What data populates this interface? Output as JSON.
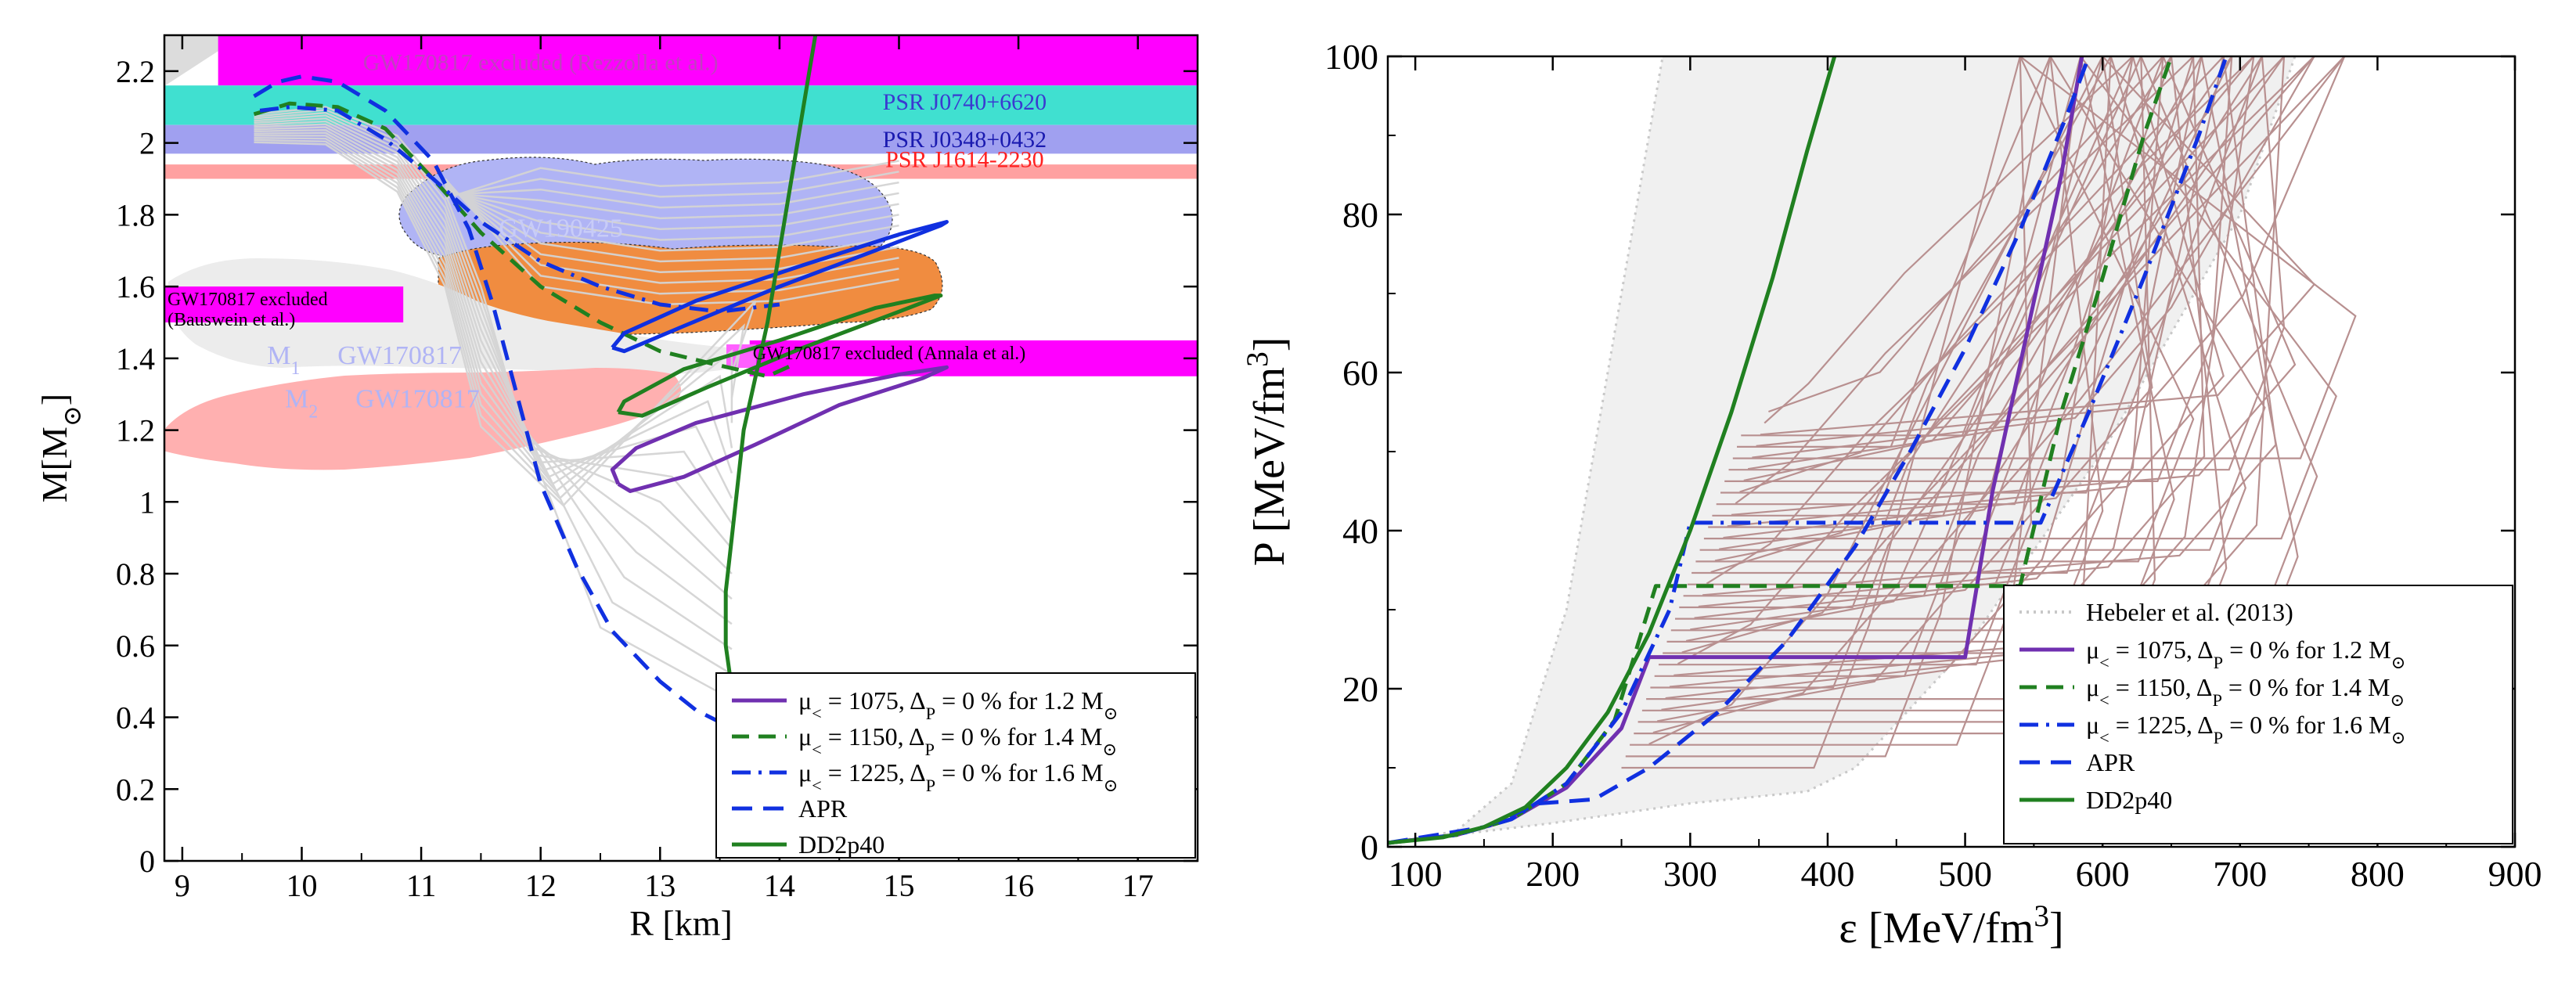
{
  "chart_data": [
    {
      "type": "line",
      "id": "mass-radius",
      "xlabel": "R [km]",
      "ylabel_main": "M[M",
      "ylabel_sub": "⊙",
      "ylabel_end": "]",
      "xlim": [
        8.85,
        17.5
      ],
      "ylim": [
        0,
        2.3
      ],
      "xticks": [
        9,
        10,
        11,
        12,
        13,
        14,
        15,
        16,
        17
      ],
      "yticks": [
        0,
        0.2,
        0.4,
        0.6,
        0.8,
        1,
        1.2,
        1.4,
        1.6,
        1.8,
        2,
        2.2
      ],
      "ytick_labels": [
        "0",
        "0.2",
        "0.4",
        "0.6",
        "0.8",
        "1",
        "1.2",
        "1.4",
        "1.6",
        "1.8",
        "2",
        "2.2"
      ],
      "bands": [
        {
          "name": "GW170817 excluded (Rezzolla et al.)",
          "color": "#ff00ff",
          "y": [
            2.16,
            2.3
          ],
          "x": [
            9.3,
            17.5
          ],
          "label_x": 12.0,
          "label_y": 2.225,
          "label_color": "#c040c0"
        },
        {
          "name": "PSR J0740+6620",
          "color": "#40e0d0",
          "y": [
            2.05,
            2.16
          ],
          "x": [
            8.85,
            17.5
          ],
          "label_x": 15.55,
          "label_y": 2.115,
          "label_color": "#3a3ad0"
        },
        {
          "name": "PSR J0348+0432",
          "color": "#a0a0f0",
          "y": [
            1.97,
            2.05
          ],
          "x": [
            8.85,
            17.5
          ],
          "label_x": 15.55,
          "label_y": 2.01,
          "label_color": "#1a1ab0"
        },
        {
          "name": "PSR J1614-2230",
          "color": "#ffa0a0",
          "y": [
            1.9,
            1.94
          ],
          "x": [
            8.85,
            17.5
          ],
          "label_x": 15.55,
          "label_y": 1.955,
          "label_color": "#ff2020"
        }
      ],
      "excluded_boxes": [
        {
          "label1": "GW170817 excluded",
          "label2": "(Bauswein et al.)",
          "x": [
            8.85,
            10.85
          ],
          "y": [
            1.5,
            1.6
          ],
          "color": "#ff00ff"
        },
        {
          "label1": "GW170817 excluded (Annala et al.)",
          "label2": "",
          "x": [
            13.75,
            17.5
          ],
          "y": [
            1.35,
            1.45
          ],
          "color": "#ff00ff"
        }
      ],
      "regions": [
        {
          "name": "GW190425",
          "color": "#b0b4f5",
          "label_x": 11.65,
          "label_y": 1.765
        },
        {
          "name": "GW190425 (orange)",
          "color": "#f08c40",
          "label_x": 12.1,
          "label_y": 1.65
        },
        {
          "name": "GW170817 M1",
          "color": "#ececec",
          "label_prefix": "M",
          "label_sub": "1",
          "label": "GW170817",
          "label_x": 10.3,
          "label_y": 1.41
        },
        {
          "name": "GW170817 M2",
          "color": "#ffb0b0",
          "label_prefix": "M",
          "label_sub": "2",
          "label": "GW170817",
          "label_x": 10.45,
          "label_y": 1.29
        }
      ],
      "series": [
        {
          "name": "mu1075",
          "legend_pre": "μ",
          "legend_sub": "<",
          "legend_mid": " = 1075, Δ",
          "legend_sub2": "P",
          "legend_post": " = 0 % for 1.2 M",
          "legend_sub3": "⊙",
          "color": "#7030b0",
          "dash": "solid",
          "points": [
            [
              12.65,
              1.05
            ],
            [
              12.6,
              1.09
            ],
            [
              12.8,
              1.15
            ],
            [
              13.3,
              1.22
            ],
            [
              14.2,
              1.3
            ],
            [
              15.0,
              1.355
            ],
            [
              15.4,
              1.375
            ],
            [
              15.2,
              1.345
            ],
            [
              14.5,
              1.27
            ],
            [
              13.8,
              1.16
            ],
            [
              13.2,
              1.07
            ],
            [
              12.75,
              1.03
            ],
            [
              12.65,
              1.05
            ]
          ]
        },
        {
          "name": "mu1150",
          "legend_pre": "μ",
          "legend_sub": "<",
          "legend_mid": " = 1150, Δ",
          "legend_sub2": "P",
          "legend_post": " = 0 % for 1.4 M",
          "legend_sub3": "⊙",
          "color": "#208020",
          "dash": "dashed",
          "points": [
            [
              9.6,
              2.08
            ],
            [
              9.9,
              2.11
            ],
            [
              10.3,
              2.1
            ],
            [
              10.7,
              2.04
            ],
            [
              11.1,
              1.9
            ],
            [
              11.5,
              1.75
            ],
            [
              12.0,
              1.6
            ],
            [
              12.5,
              1.5
            ],
            [
              13.0,
              1.42
            ],
            [
              13.5,
              1.38
            ],
            [
              13.9,
              1.35
            ],
            [
              14.1,
              1.38
            ]
          ]
        },
        {
          "name": "mu1150-loop",
          "color": "#208020",
          "dash": "solid",
          "legend": false,
          "points": [
            [
              12.65,
              1.25
            ],
            [
              12.7,
              1.28
            ],
            [
              13.2,
              1.37
            ],
            [
              14.0,
              1.45
            ],
            [
              14.8,
              1.54
            ],
            [
              15.3,
              1.575
            ],
            [
              15.35,
              1.575
            ],
            [
              15.0,
              1.53
            ],
            [
              14.2,
              1.43
            ],
            [
              13.4,
              1.32
            ],
            [
              12.85,
              1.24
            ],
            [
              12.65,
              1.25
            ]
          ]
        },
        {
          "name": "mu1225",
          "legend_pre": "μ",
          "legend_sub": "<",
          "legend_mid": " = 1225, Δ",
          "legend_sub2": "P",
          "legend_post": " = 0 % for 1.6 M",
          "legend_sub3": "⊙",
          "color": "#1030e0",
          "dash": "dashdot",
          "points": [
            [
              9.65,
              2.09
            ],
            [
              9.9,
              2.1
            ],
            [
              10.3,
              2.09
            ],
            [
              10.7,
              2.01
            ],
            [
              11.1,
              1.9
            ],
            [
              11.5,
              1.78
            ],
            [
              12.0,
              1.67
            ],
            [
              12.5,
              1.6
            ],
            [
              13.0,
              1.55
            ],
            [
              13.5,
              1.53
            ],
            [
              14.0,
              1.55
            ]
          ]
        },
        {
          "name": "mu1225-loop",
          "color": "#1030e0",
          "dash": "solid",
          "legend": false,
          "points": [
            [
              12.6,
              1.43
            ],
            [
              12.7,
              1.47
            ],
            [
              13.3,
              1.56
            ],
            [
              14.2,
              1.66
            ],
            [
              15.0,
              1.745
            ],
            [
              15.4,
              1.78
            ],
            [
              15.35,
              1.77
            ],
            [
              14.8,
              1.7
            ],
            [
              14.0,
              1.6
            ],
            [
              13.2,
              1.49
            ],
            [
              12.7,
              1.42
            ],
            [
              12.6,
              1.43
            ]
          ]
        },
        {
          "name": "APR",
          "legend_pre": "APR",
          "color": "#1030e0",
          "dash": "longdash",
          "points": [
            [
              9.6,
              2.13
            ],
            [
              9.8,
              2.17
            ],
            [
              10.0,
              2.185
            ],
            [
              10.3,
              2.17
            ],
            [
              10.7,
              2.09
            ],
            [
              11.1,
              1.95
            ],
            [
              11.4,
              1.76
            ],
            [
              11.6,
              1.55
            ],
            [
              11.8,
              1.3
            ],
            [
              12.0,
              1.05
            ],
            [
              12.3,
              0.82
            ],
            [
              12.6,
              0.64
            ],
            [
              13.0,
              0.5
            ],
            [
              13.3,
              0.42
            ],
            [
              13.6,
              0.37
            ],
            [
              13.85,
              0.34
            ]
          ]
        },
        {
          "name": "DD2p40",
          "legend_pre": "DD2p40",
          "color": "#208020",
          "dash": "solid",
          "points": [
            [
              13.6,
              0.48
            ],
            [
              13.55,
              0.6
            ],
            [
              13.55,
              0.75
            ],
            [
              13.6,
              0.9
            ],
            [
              13.65,
              1.05
            ],
            [
              13.7,
              1.2
            ],
            [
              13.8,
              1.35
            ],
            [
              13.9,
              1.5
            ],
            [
              14.0,
              1.7
            ],
            [
              14.1,
              1.9
            ],
            [
              14.2,
              2.1
            ],
            [
              14.3,
              2.3
            ]
          ]
        }
      ]
    },
    {
      "type": "line",
      "id": "pressure-energy",
      "xlabel": "ε [MeV/fm",
      "xlabel_sup": "3",
      "xlabel_end": "]",
      "ylabel": "P [MeV/fm",
      "ylabel_sup": "3",
      "ylabel_end": "]",
      "xlim": [
        80,
        900
      ],
      "ylim": [
        0,
        100
      ],
      "xticks": [
        100,
        200,
        300,
        400,
        500,
        600,
        700,
        800,
        900
      ],
      "yticks": [
        0,
        20,
        40,
        60,
        80,
        100
      ],
      "band": {
        "name": "Hebeler et al. (2013)",
        "color": "#f0f0f0",
        "upper": [
          [
            80,
            0.5
          ],
          [
            130,
            2
          ],
          [
            170,
            8
          ],
          [
            210,
            30
          ],
          [
            250,
            70
          ],
          [
            280,
            100
          ]
        ],
        "lower": [
          [
            80,
            0.5
          ],
          [
            200,
            3
          ],
          [
            300,
            5.5
          ],
          [
            385,
            7
          ],
          [
            420,
            10
          ],
          [
            500,
            25
          ],
          [
            600,
            50
          ],
          [
            700,
            80
          ],
          [
            740,
            100
          ]
        ]
      },
      "series": [
        {
          "name": "Hebeler",
          "legend_pre": "Hebeler et al. (2013)",
          "color": "#c8c8c8",
          "dash": "dotted",
          "legend": true
        },
        {
          "name": "mu1075",
          "legend_pre": "μ",
          "legend_sub": "<",
          "legend_mid": " = 1075, Δ",
          "legend_sub2": "P",
          "legend_post": " = 0 % for 1.2 M",
          "legend_sub3": "⊙",
          "color": "#7030b0",
          "dash": "solid",
          "points": [
            [
              80,
              0.5
            ],
            [
              130,
              1.5
            ],
            [
              170,
              3.5
            ],
            [
              210,
              7.5
            ],
            [
              250,
              15
            ],
            [
              270,
              24
            ],
            [
              500,
              24
            ],
            [
              520,
              45
            ],
            [
              545,
              65
            ],
            [
              570,
              85
            ],
            [
              585,
              100
            ]
          ]
        },
        {
          "name": "mu1150",
          "legend_pre": "μ",
          "legend_sub": "<",
          "legend_mid": " = 1150, Δ",
          "legend_sub2": "P",
          "legend_post": " = 0 % for 1.4 M",
          "legend_sub3": "⊙",
          "color": "#208020",
          "dash": "dashed",
          "points": [
            [
              80,
              0.5
            ],
            [
              130,
              1.5
            ],
            [
              170,
              3.5
            ],
            [
              210,
              8
            ],
            [
              245,
              16
            ],
            [
              275,
              33
            ],
            [
              540,
              33
            ],
            [
              570,
              55
            ],
            [
              600,
              72
            ],
            [
              630,
              90
            ],
            [
              650,
              100
            ]
          ]
        },
        {
          "name": "mu1225",
          "legend_pre": "μ",
          "legend_sub": "<",
          "legend_mid": " = 1225, Δ",
          "legend_sub2": "P",
          "legend_post": " = 0 % for 1.6 M",
          "legend_sub3": "⊙",
          "color": "#1030e0",
          "dash": "dashdot",
          "points": [
            [
              80,
              0.5
            ],
            [
              130,
              1.5
            ],
            [
              170,
              3.5
            ],
            [
              210,
              8
            ],
            [
              250,
              17
            ],
            [
              285,
              30
            ],
            [
              300,
              41
            ],
            [
              555,
              41
            ],
            [
              590,
              55
            ],
            [
              630,
              72
            ],
            [
              670,
              90
            ],
            [
              690,
              100
            ]
          ]
        },
        {
          "name": "APR",
          "legend_pre": "APR",
          "color": "#1030e0",
          "dash": "longdash",
          "points": [
            [
              80,
              0.5
            ],
            [
              150,
              2.5
            ],
            [
              190,
              5.5
            ],
            [
              230,
              6
            ],
            [
              270,
              10
            ],
            [
              320,
              17
            ],
            [
              370,
              26
            ],
            [
              420,
              38
            ],
            [
              460,
              50
            ],
            [
              500,
              63
            ],
            [
              540,
              78
            ],
            [
              575,
              93
            ],
            [
              590,
              100
            ]
          ]
        },
        {
          "name": "DD2p40",
          "legend_pre": "DD2p40",
          "color": "#208020",
          "dash": "solid",
          "points": [
            [
              80,
              0.5
            ],
            [
              120,
              1.2
            ],
            [
              150,
              2.5
            ],
            [
              180,
              5
            ],
            [
              210,
              10
            ],
            [
              240,
              17
            ],
            [
              270,
              27
            ],
            [
              300,
              40
            ],
            [
              330,
              55
            ],
            [
              360,
              72
            ],
            [
              385,
              88
            ],
            [
              405,
              100
            ]
          ]
        }
      ]
    }
  ]
}
